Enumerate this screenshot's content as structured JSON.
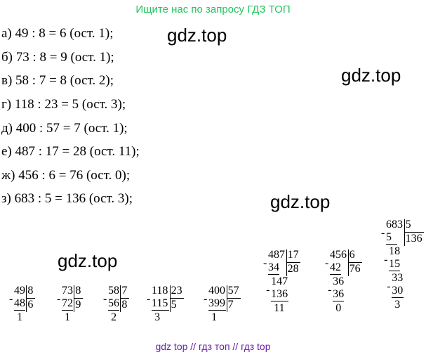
{
  "header": {
    "text": "Ищите нас по запросу ГДЗ ТОП",
    "color": "#22c55e"
  },
  "lines": [
    "а) 49 : 8 = 6 (ост. 1);",
    "б) 73 : 8 = 9 (ост. 1);",
    "в) 58 : 7 = 8 (ост. 2);",
    "г) 118 : 23 = 5 (ост. 3);",
    "д) 400 : 57 = 7 (ост. 1);",
    "е) 487 : 17 = 28 (ост. 11);",
    "ж) 456 : 6 = 76 (ост. 0);",
    "з) 683 : 5 = 136 (ост. 3);"
  ],
  "watermarks": [
    "gdz.top",
    "gdz.top",
    "gdz.top",
    "gdz.top"
  ],
  "long_divisions": [
    {
      "dividend": "49",
      "divisor": "8",
      "quotient": "6",
      "steps": [
        {
          "sub": "48",
          "rem": "1"
        }
      ]
    },
    {
      "dividend": "73",
      "divisor": "8",
      "quotient": "9",
      "steps": [
        {
          "sub": "72",
          "rem": "1"
        }
      ]
    },
    {
      "dividend": "58",
      "divisor": "7",
      "quotient": "8",
      "steps": [
        {
          "sub": "56",
          "rem": "2"
        }
      ]
    },
    {
      "dividend": "118",
      "divisor": "23",
      "quotient": "5",
      "steps": [
        {
          "sub": "115",
          "rem": "3"
        }
      ]
    },
    {
      "dividend": "400",
      "divisor": "57",
      "quotient": "7",
      "steps": [
        {
          "sub": "399",
          "rem": "1"
        }
      ]
    },
    {
      "dividend": "487",
      "divisor": "17",
      "quotient": "28",
      "steps": [
        {
          "sub": "34",
          "rem": "147"
        },
        {
          "sub": "136",
          "rem": "11"
        }
      ]
    },
    {
      "dividend": "456",
      "divisor": "6",
      "quotient": "76",
      "steps": [
        {
          "sub": "42",
          "rem": "36"
        },
        {
          "sub": "36",
          "rem": "0"
        }
      ]
    },
    {
      "dividend": "683",
      "divisor": "5",
      "quotient": "136",
      "steps": [
        {
          "sub": "5",
          "rem": "18"
        },
        {
          "sub": "15",
          "rem": "33"
        },
        {
          "sub": "30",
          "rem": "3"
        }
      ]
    }
  ],
  "footer": {
    "text": "gdz top  //  гдз топ  //  гдз top",
    "color": "#6b21a8"
  }
}
